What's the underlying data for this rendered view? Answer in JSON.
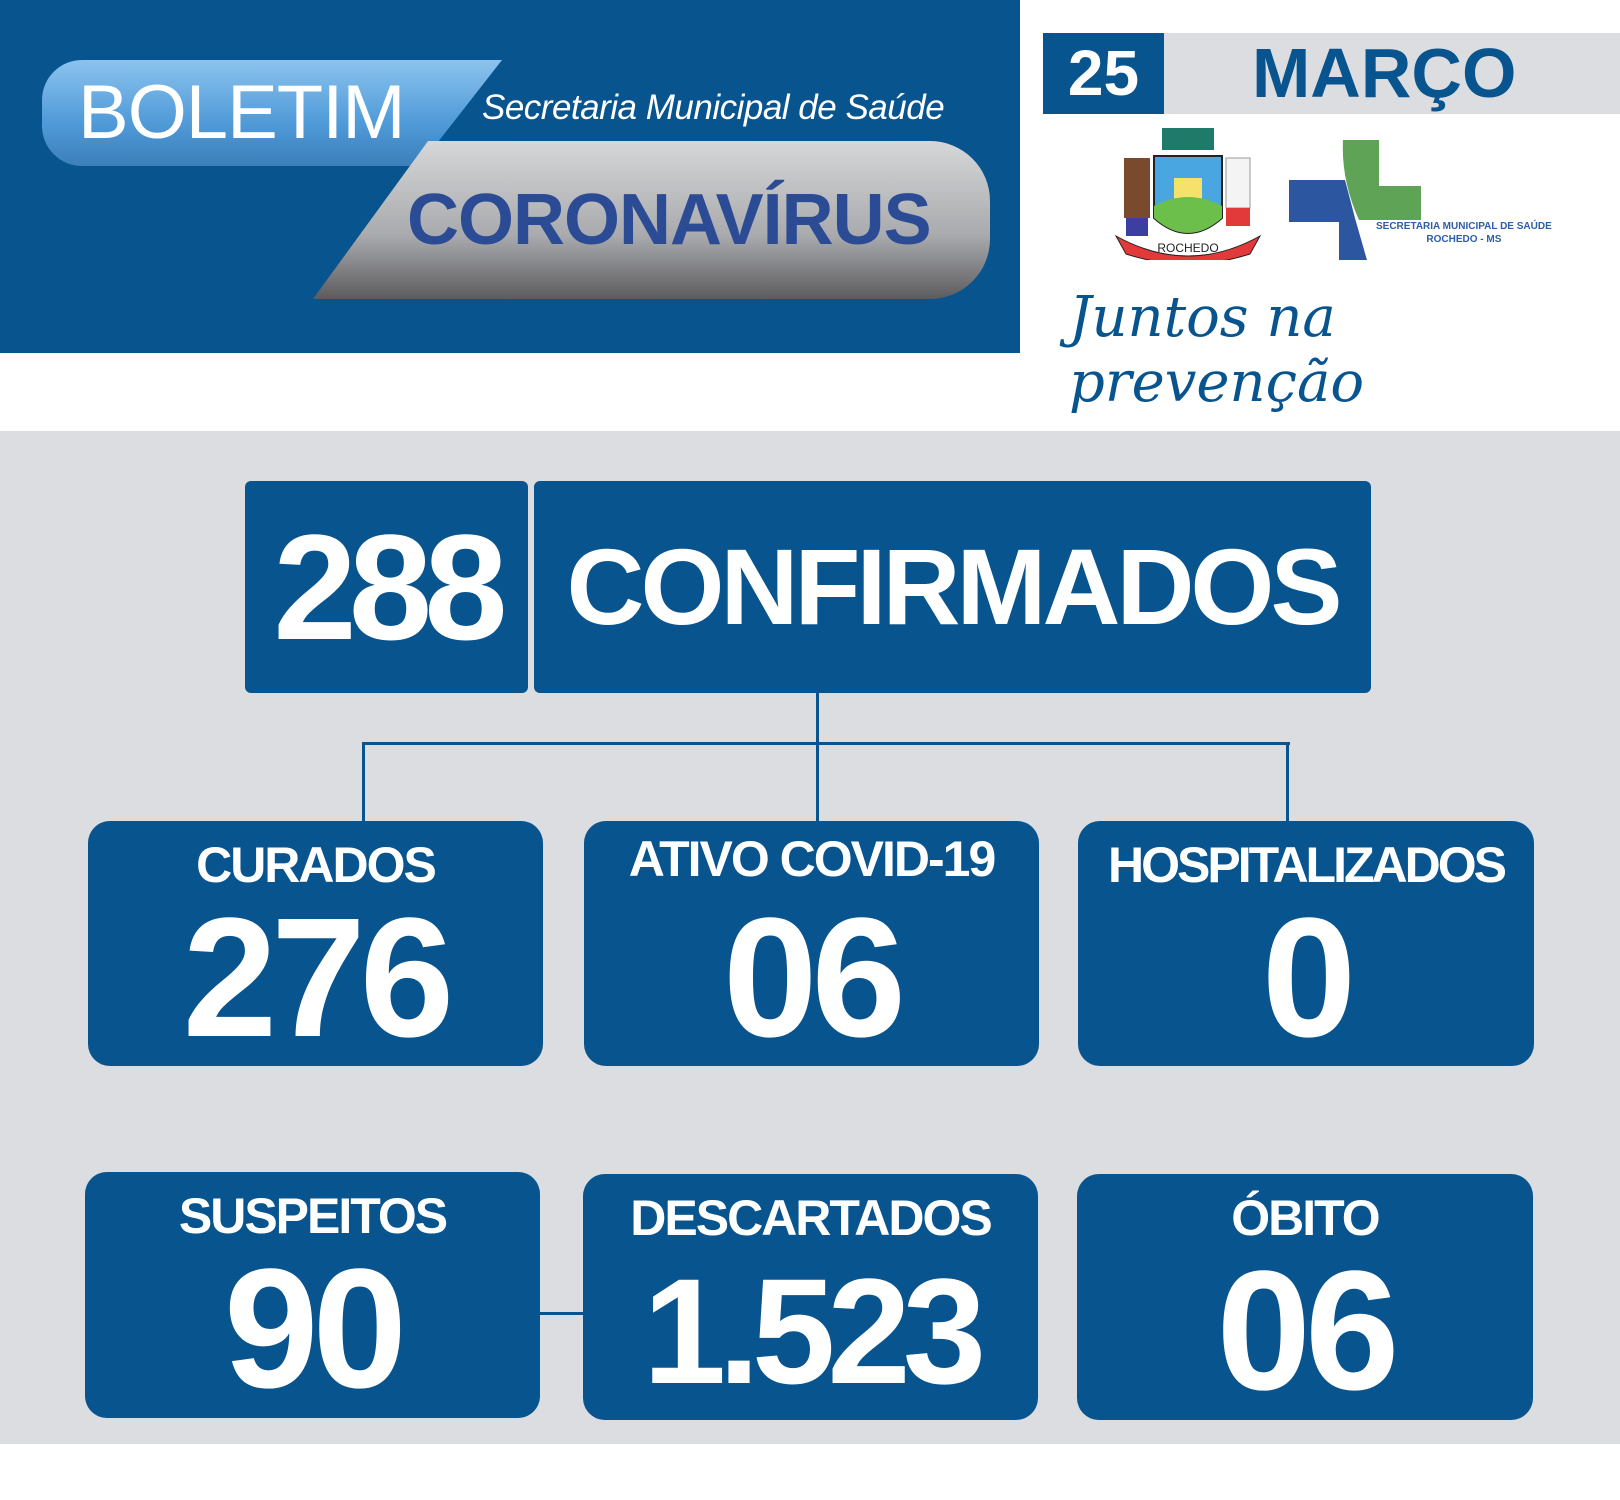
{
  "header": {
    "boletim": "BOLETIM",
    "secretaria": "Secretaria Municipal de Saúde",
    "coronavirus": "CORONAVÍRUS"
  },
  "date": {
    "day": "25",
    "month": "MARÇO"
  },
  "logos": {
    "city_crest": "ROCHEDO",
    "health_dept_line1": "SECRETARIA MUNICIPAL DE SAÚDE",
    "health_dept_line2": "ROCHEDO - MS"
  },
  "slogan": "Juntos na prevenção",
  "confirmed": {
    "value": "288",
    "label": "CONFIRMADOS"
  },
  "stats": [
    {
      "label": "CURADOS",
      "value": "276"
    },
    {
      "label": "ATIVO COVID-19",
      "value": "06"
    },
    {
      "label": "HOSPITALIZADOS",
      "value": "0"
    },
    {
      "label": "SUSPEITOS",
      "value": "90"
    },
    {
      "label": "DESCARTADOS",
      "value": "1.523"
    },
    {
      "label": "ÓBITO",
      "value": "06"
    }
  ],
  "colors": {
    "primary_blue": "#07548e",
    "background_gray": "#dcdde0"
  }
}
